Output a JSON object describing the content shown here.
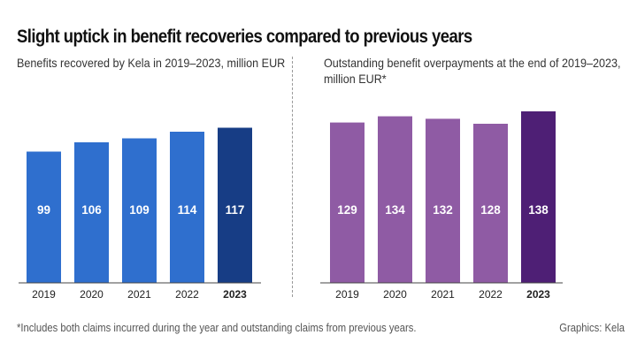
{
  "header": {
    "title": "Slight uptick in benefit recoveries compared to previous years"
  },
  "chart_data": [
    {
      "type": "bar",
      "title": "Benefits recovered by Kela in 2019–2023, million EUR",
      "categories": [
        "2019",
        "2020",
        "2021",
        "2022",
        "2023"
      ],
      "values": [
        99,
        106,
        109,
        114,
        117
      ],
      "value_labels": [
        "99",
        "106",
        "109",
        "114",
        "117"
      ],
      "highlight_category": "2023",
      "ylim": [
        0,
        140
      ],
      "colors": {
        "bar": "#2f6fce",
        "highlight": "#173d85",
        "label": "#ffffff"
      }
    },
    {
      "type": "bar",
      "title_lines": [
        "Outstanding benefit overpayments at the end of 2019–2023,",
        "million EUR*"
      ],
      "categories": [
        "2019",
        "2020",
        "2021",
        "2022",
        "2023"
      ],
      "values": [
        129,
        134,
        132,
        128,
        138
      ],
      "value_labels": [
        "129",
        "134",
        "132",
        "128",
        "138"
      ],
      "highlight_category": "2023",
      "ylim": [
        0,
        160
      ],
      "colors": {
        "bar": "#8f5ba4",
        "highlight": "#4e1f75",
        "label": "#ffffff"
      }
    }
  ],
  "footer": {
    "footnote": "*Includes both claims incurred during the year and outstanding claims from previous years.",
    "credit": "Graphics: Kela"
  },
  "colors": {
    "axis": "#444444",
    "divider": "#999999"
  }
}
